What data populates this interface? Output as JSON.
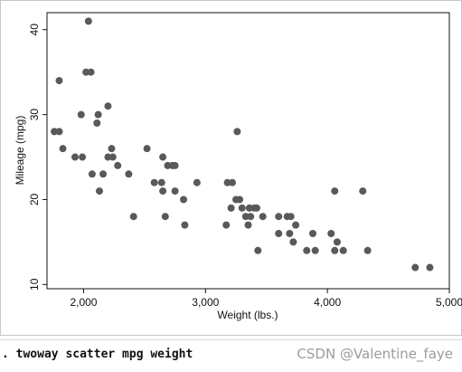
{
  "chart_data": {
    "type": "scatter",
    "title": "",
    "xlabel": "Weight (lbs.)",
    "ylabel": "Mileage (mpg)",
    "xlim": [
      1700,
      5000
    ],
    "ylim": [
      9.5,
      42
    ],
    "x_ticks": [
      2000,
      3000,
      4000,
      5000
    ],
    "x_tick_labels": [
      "2,000",
      "3,000",
      "4,000",
      "5,000"
    ],
    "y_ticks": [
      10,
      20,
      30,
      40
    ],
    "y_tick_labels": [
      "10",
      "20",
      "30",
      "40"
    ],
    "grid": false,
    "legend": "none",
    "marker_color": "#595959",
    "points": [
      [
        1760,
        28
      ],
      [
        1800,
        28
      ],
      [
        1800,
        34
      ],
      [
        1830,
        26
      ],
      [
        1930,
        25
      ],
      [
        1980,
        30
      ],
      [
        1990,
        25
      ],
      [
        2020,
        35
      ],
      [
        2040,
        41
      ],
      [
        2060,
        35
      ],
      [
        2070,
        23
      ],
      [
        2110,
        29
      ],
      [
        2120,
        30
      ],
      [
        2130,
        21
      ],
      [
        2160,
        23
      ],
      [
        2200,
        25
      ],
      [
        2200,
        31
      ],
      [
        2230,
        26
      ],
      [
        2240,
        25
      ],
      [
        2280,
        24
      ],
      [
        2370,
        23
      ],
      [
        2410,
        18
      ],
      [
        2520,
        26
      ],
      [
        2580,
        22
      ],
      [
        2640,
        22
      ],
      [
        2650,
        25
      ],
      [
        2650,
        21
      ],
      [
        2670,
        18
      ],
      [
        2690,
        24
      ],
      [
        2730,
        24
      ],
      [
        2750,
        21
      ],
      [
        2750,
        24
      ],
      [
        2820,
        20
      ],
      [
        2830,
        17
      ],
      [
        2930,
        22
      ],
      [
        3170,
        17
      ],
      [
        3180,
        22
      ],
      [
        3210,
        19
      ],
      [
        3220,
        22
      ],
      [
        3250,
        20
      ],
      [
        3260,
        28
      ],
      [
        3280,
        20
      ],
      [
        3300,
        19
      ],
      [
        3330,
        18
      ],
      [
        3350,
        17
      ],
      [
        3360,
        19
      ],
      [
        3370,
        18
      ],
      [
        3400,
        19
      ],
      [
        3420,
        19
      ],
      [
        3430,
        14
      ],
      [
        3470,
        18
      ],
      [
        3600,
        18
      ],
      [
        3600,
        16
      ],
      [
        3670,
        18
      ],
      [
        3690,
        16
      ],
      [
        3700,
        18
      ],
      [
        3720,
        15
      ],
      [
        3740,
        17
      ],
      [
        3830,
        14
      ],
      [
        3880,
        16
      ],
      [
        3900,
        14
      ],
      [
        4030,
        16
      ],
      [
        4060,
        14
      ],
      [
        4060,
        21
      ],
      [
        4080,
        15
      ],
      [
        4130,
        14
      ],
      [
        4290,
        21
      ],
      [
        4330,
        14
      ],
      [
        4720,
        12
      ],
      [
        4840,
        12
      ]
    ]
  },
  "console": {
    "command": ". twoway scatter mpg weight",
    "watermark": "CSDN @Valentine_faye"
  }
}
